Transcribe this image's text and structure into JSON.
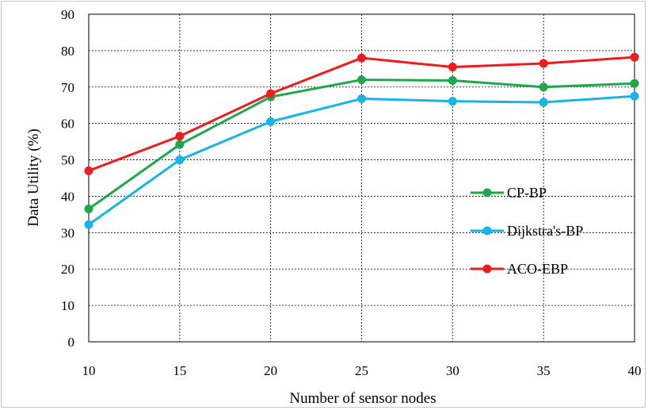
{
  "chart_data": {
    "type": "line",
    "x": [
      10,
      15,
      20,
      25,
      30,
      35,
      40
    ],
    "xlabel": "Number of sensor nodes",
    "ylabel": "Data Utility (%)",
    "xlim": [
      10,
      40
    ],
    "ylim": [
      0,
      90
    ],
    "xticks": [
      "10",
      "15",
      "20",
      "25",
      "30",
      "35",
      "40"
    ],
    "yticks": [
      "0",
      "10",
      "20",
      "30",
      "40",
      "50",
      "60",
      "70",
      "80",
      "90"
    ],
    "grid": true,
    "legend_position": "right-middle",
    "series": [
      {
        "name": "CP-BP",
        "color": "#1ea84a",
        "values": [
          36.5,
          54.2,
          67.3,
          72.0,
          71.8,
          70.0,
          71.0
        ]
      },
      {
        "name": "Dijkstra's-BP",
        "color": "#17b4e8",
        "values": [
          32.2,
          50.0,
          60.5,
          66.8,
          66.1,
          65.8,
          67.5
        ]
      },
      {
        "name": "ACO-EBP",
        "color": "#ee1c1c",
        "values": [
          47.0,
          56.5,
          68.2,
          78.0,
          75.5,
          76.5,
          78.2
        ]
      }
    ]
  }
}
